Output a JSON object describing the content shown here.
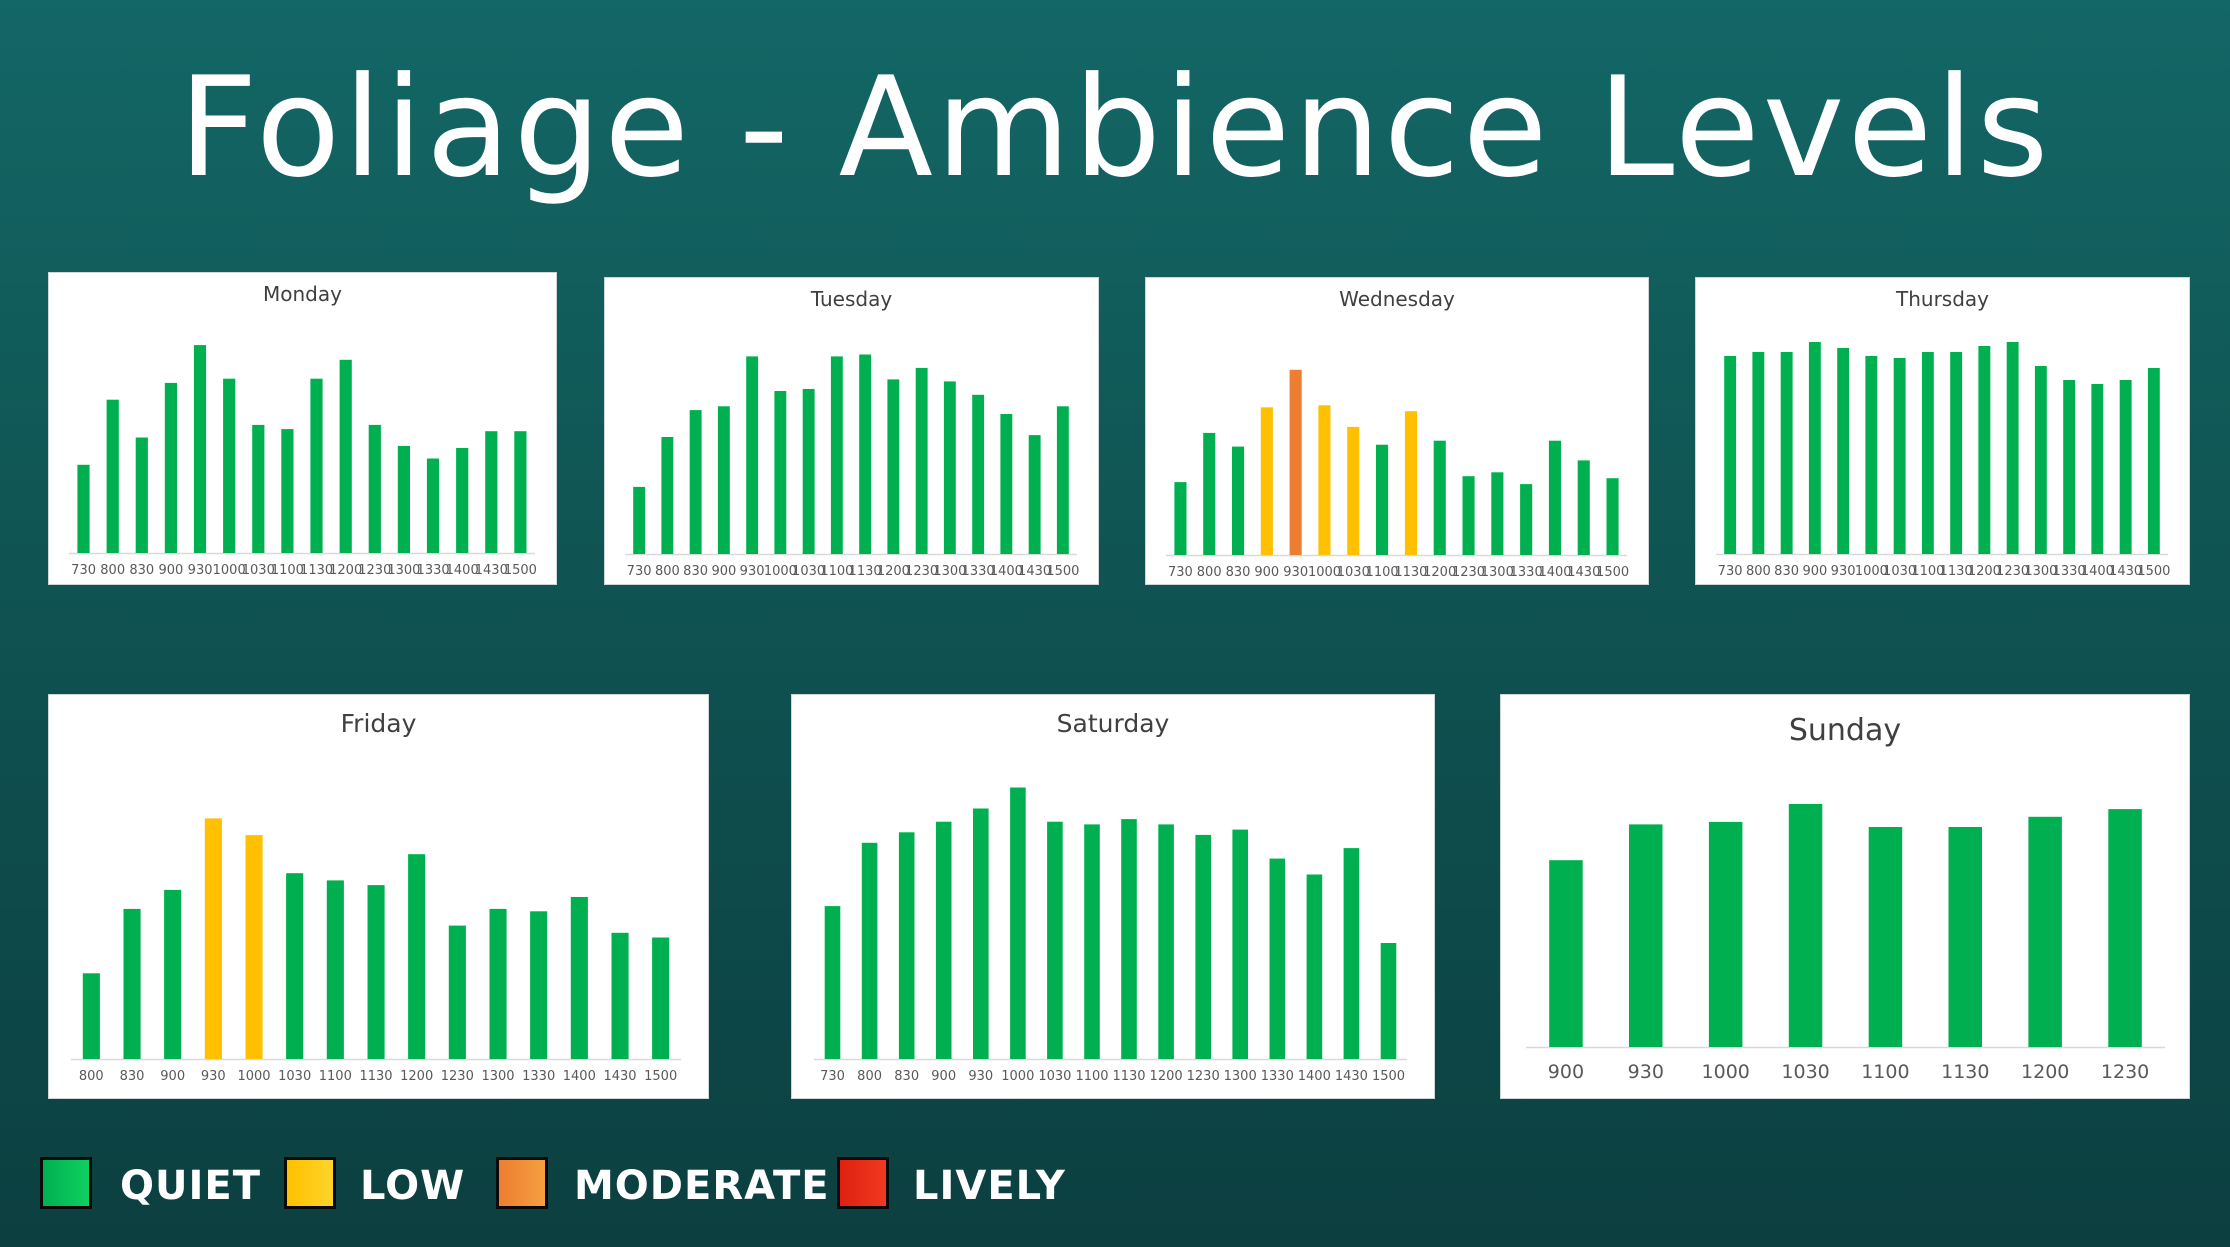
{
  "title": "Foliage - Ambience Levels",
  "colors": {
    "quiet": "#00b050",
    "low": "#ffc000",
    "moderate": "#ed7d31",
    "lively": "#e02010"
  },
  "legend": [
    {
      "label": "QUIET",
      "color": "#00b050"
    },
    {
      "label": "LOW",
      "color": "#ffc000"
    },
    {
      "label": "MODERATE",
      "color": "#ed7d31"
    },
    {
      "label": "LIVELY",
      "color": "#e02010"
    }
  ],
  "chart_data": [
    {
      "type": "bar",
      "title": "Monday",
      "categories": [
        "730",
        "800",
        "830",
        "900",
        "930",
        "1000",
        "1030",
        "1100",
        "1130",
        "1200",
        "1230",
        "1300",
        "1330",
        "1400",
        "1430",
        "1500"
      ],
      "values": [
        42,
        73,
        55,
        81,
        99,
        83,
        61,
        59,
        83,
        92,
        61,
        51,
        45,
        50,
        58,
        58
      ],
      "levels": [
        "quiet",
        "quiet",
        "quiet",
        "quiet",
        "quiet",
        "quiet",
        "quiet",
        "quiet",
        "quiet",
        "quiet",
        "quiet",
        "quiet",
        "quiet",
        "quiet",
        "quiet",
        "quiet"
      ],
      "ylim": [
        0,
        100
      ]
    },
    {
      "type": "bar",
      "title": "Tuesday",
      "categories": [
        "730",
        "800",
        "830",
        "900",
        "930",
        "1000",
        "1030",
        "1100",
        "1130",
        "1200",
        "1230",
        "1300",
        "1330",
        "1400",
        "1430",
        "1500"
      ],
      "values": [
        35,
        61,
        75,
        77,
        103,
        85,
        86,
        103,
        104,
        91,
        97,
        90,
        83,
        73,
        62,
        77
      ],
      "levels": [
        "quiet",
        "quiet",
        "quiet",
        "quiet",
        "quiet",
        "quiet",
        "quiet",
        "quiet",
        "quiet",
        "quiet",
        "quiet",
        "quiet",
        "quiet",
        "quiet",
        "quiet",
        "quiet"
      ],
      "ylim": [
        0,
        110
      ]
    },
    {
      "type": "bar",
      "title": "Wednesday",
      "categories": [
        "730",
        "800",
        "830",
        "900",
        "930",
        "1000",
        "1030",
        "1100",
        "1130",
        "1200",
        "1230",
        "1300",
        "1330",
        "1400",
        "1430",
        "1500"
      ],
      "values": [
        37,
        62,
        55,
        75,
        94,
        76,
        65,
        56,
        73,
        58,
        40,
        42,
        36,
        58,
        48,
        39
      ],
      "levels": [
        "quiet",
        "quiet",
        "quiet",
        "low",
        "moderate",
        "low",
        "low",
        "quiet",
        "low",
        "quiet",
        "quiet",
        "quiet",
        "quiet",
        "quiet",
        "quiet",
        "quiet"
      ],
      "ylim": [
        0,
        100
      ]
    },
    {
      "type": "bar",
      "title": "Thursday",
      "categories": [
        "730",
        "800",
        "830",
        "900",
        "930",
        "1000",
        "1030",
        "1100",
        "1130",
        "1200",
        "1230",
        "1300",
        "1330",
        "1400",
        "1430",
        "1500"
      ],
      "values": [
        99,
        101,
        101,
        106,
        103,
        99,
        98,
        101,
        101,
        104,
        106,
        94,
        87,
        85,
        87,
        93
      ],
      "levels": [
        "quiet",
        "quiet",
        "quiet",
        "quiet",
        "quiet",
        "quiet",
        "quiet",
        "quiet",
        "quiet",
        "quiet",
        "quiet",
        "quiet",
        "quiet",
        "quiet",
        "quiet",
        "quiet"
      ],
      "ylim": [
        0,
        110
      ]
    },
    {
      "type": "bar",
      "title": "Friday",
      "categories": [
        "800",
        "830",
        "900",
        "930",
        "1000",
        "1030",
        "1100",
        "1130",
        "1200",
        "1230",
        "1300",
        "1330",
        "1400",
        "1430",
        "1500"
      ],
      "values": [
        36,
        63,
        71,
        101,
        94,
        78,
        75,
        73,
        86,
        56,
        63,
        62,
        68,
        53,
        51
      ],
      "levels": [
        "quiet",
        "quiet",
        "quiet",
        "low",
        "low",
        "quiet",
        "quiet",
        "quiet",
        "quiet",
        "quiet",
        "quiet",
        "quiet",
        "quiet",
        "quiet",
        "quiet"
      ],
      "ylim": [
        0,
        110
      ]
    },
    {
      "type": "bar",
      "title": "Saturday",
      "categories": [
        "730",
        "800",
        "830",
        "900",
        "930",
        "1000",
        "1030",
        "1100",
        "1130",
        "1200",
        "1230",
        "1300",
        "1330",
        "1400",
        "1430",
        "1500"
      ],
      "values": [
        58,
        82,
        86,
        90,
        95,
        103,
        90,
        89,
        91,
        89,
        85,
        87,
        76,
        70,
        80,
        44
      ],
      "levels": [
        "quiet",
        "quiet",
        "quiet",
        "quiet",
        "quiet",
        "quiet",
        "quiet",
        "quiet",
        "quiet",
        "quiet",
        "quiet",
        "quiet",
        "quiet",
        "quiet",
        "quiet",
        "quiet"
      ],
      "ylim": [
        0,
        110
      ]
    },
    {
      "type": "bar",
      "title": "Sunday",
      "categories": [
        "900",
        "930",
        "1000",
        "1030",
        "1100",
        "1130",
        "1200",
        "1230"
      ],
      "values": [
        73,
        87,
        88,
        95,
        86,
        86,
        90,
        93
      ],
      "levels": [
        "quiet",
        "quiet",
        "quiet",
        "quiet",
        "quiet",
        "quiet",
        "quiet",
        "quiet"
      ],
      "ylim": [
        0,
        120
      ]
    }
  ]
}
